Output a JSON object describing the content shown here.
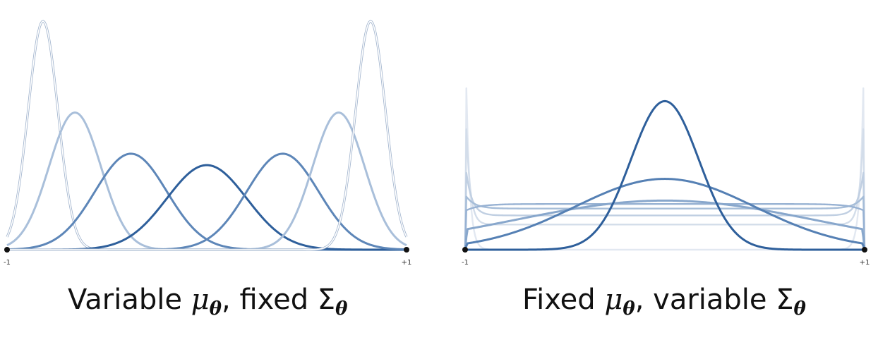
{
  "chart_data": [
    {
      "type": "line",
      "x_range": [
        -1,
        1
      ],
      "tick_labels": [
        "-1",
        "+1"
      ],
      "xlabel": "",
      "ylabel": "",
      "grid": false,
      "legend": "none",
      "caption": {
        "before": "Variable ",
        "symbol1": "μ",
        "sub1": "θ",
        "middle": ", fixed ",
        "symbol2": "Σ",
        "sub2": "θ"
      },
      "series": [
        {
          "mean": -0.82,
          "sd": 0.075,
          "peak": 1.0,
          "color": "#dfe6f0",
          "style": "double"
        },
        {
          "mean": -0.66,
          "sd": 0.13,
          "peak": 0.6,
          "color": "#a9bfda",
          "style": "single"
        },
        {
          "mean": -0.38,
          "sd": 0.18,
          "peak": 0.42,
          "color": "#5d86b8",
          "style": "single"
        },
        {
          "mean": 0.0,
          "sd": 0.2,
          "peak": 0.37,
          "color": "#2e5f9b",
          "style": "single"
        },
        {
          "mean": 0.38,
          "sd": 0.18,
          "peak": 0.42,
          "color": "#5d86b8",
          "style": "single"
        },
        {
          "mean": 0.66,
          "sd": 0.13,
          "peak": 0.6,
          "color": "#a9bfda",
          "style": "single"
        },
        {
          "mean": 0.82,
          "sd": 0.075,
          "peak": 1.0,
          "color": "#dfe6f0",
          "style": "double"
        }
      ]
    },
    {
      "type": "line",
      "x_range": [
        -1,
        1
      ],
      "tick_labels": [
        "-1",
        "+1"
      ],
      "xlabel": "",
      "ylabel": "",
      "grid": false,
      "legend": "none",
      "caption": {
        "before": "Fixed ",
        "symbol1": "μ",
        "sub1": "θ",
        "middle": ", variable ",
        "symbol2": "Σ",
        "sub2": "θ"
      },
      "series": [
        {
          "kind": "U",
          "level": 0.0,
          "edge": 1.0,
          "k": 0.018,
          "color": "#e2e8f1"
        },
        {
          "kind": "U",
          "level": 0.11,
          "edge": 0.68,
          "k": 0.02,
          "color": "#d3ddea"
        },
        {
          "kind": "U",
          "level": 0.15,
          "edge": 0.38,
          "k": 0.03,
          "color": "#c0cfe2"
        },
        {
          "kind": "U",
          "level": 0.18,
          "edge": 0.24,
          "k": 0.045,
          "color": "#a6bdd8"
        },
        {
          "kind": "U",
          "level": 0.2,
          "edge": 0.17,
          "k": 0.07,
          "color": "#98b2d3"
        },
        {
          "kind": "bump",
          "mean": 0.0,
          "sd": 0.75,
          "peak": 0.215,
          "color": "#88a7cc"
        },
        {
          "kind": "bump",
          "mean": 0.0,
          "sd": 0.45,
          "peak": 0.31,
          "color": "#5580b4"
        },
        {
          "kind": "bump",
          "mean": 0.0,
          "sd": 0.17,
          "peak": 0.65,
          "color": "#2e5f9b"
        }
      ]
    }
  ]
}
